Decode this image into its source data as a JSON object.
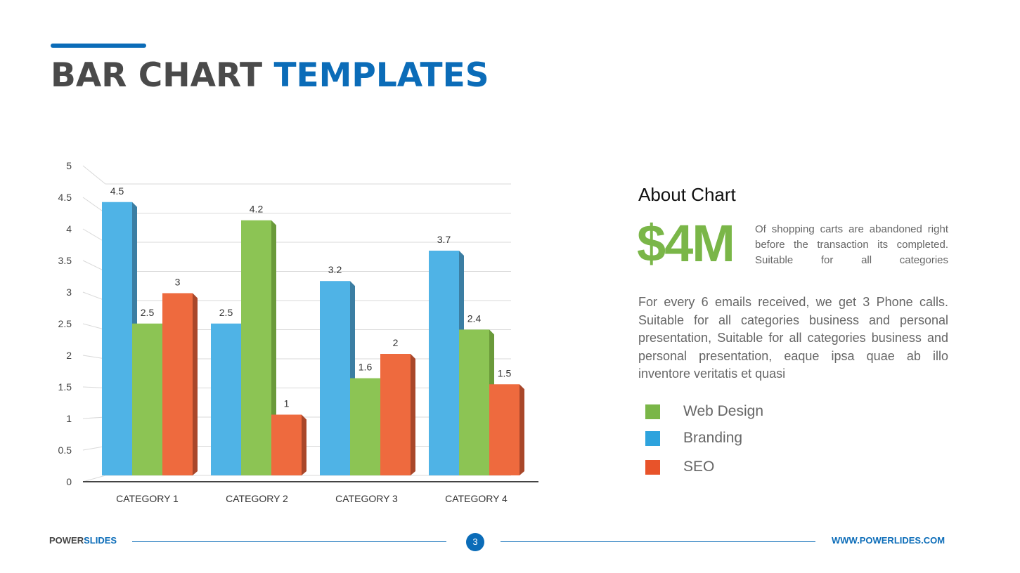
{
  "header": {
    "title_part1": "BAR CHART",
    "title_part2": "TEMPLATES"
  },
  "colors": {
    "accent": "#0b6cb8",
    "Web Design": "#8cc454",
    "Branding": "#4fb3e6",
    "SEO": "#ee6a3e"
  },
  "chart_data": {
    "type": "bar",
    "categories": [
      "CATEGORY 1",
      "CATEGORY 2",
      "CATEGORY 3",
      "CATEGORY 4"
    ],
    "series": [
      {
        "name": "Branding",
        "values": [
          4.5,
          2.5,
          3.2,
          3.7
        ]
      },
      {
        "name": "Web Design",
        "values": [
          2.5,
          4.2,
          1.6,
          2.4
        ]
      },
      {
        "name": "SEO",
        "values": [
          3,
          1,
          2,
          1.5
        ]
      }
    ],
    "ylim": [
      0,
      5
    ],
    "yticks": [
      "0",
      "0.5",
      "1",
      "1.5",
      "2",
      "2.5",
      "3",
      "3.5",
      "4",
      "4.5",
      "5"
    ],
    "grid": true,
    "style": "3d clustered column",
    "legend_position": "right"
  },
  "about": {
    "title": "About Chart",
    "big_value": "$4M",
    "big_desc": "Of shopping carts are abandoned right before the transaction its completed. Suitable for all categories",
    "paragraph": "For every 6 emails received, we get 3 Phone calls. Suitable for all categories business and personal presentation, Suitable for all categories business and personal presentation, eaque ipsa quae ab illo inventore veritatis et quasi"
  },
  "legend": [
    {
      "label": "Web Design",
      "color": "#7ab648"
    },
    {
      "label": "Branding",
      "color": "#2ea3dd"
    },
    {
      "label": "SEO",
      "color": "#e8532a"
    }
  ],
  "footer": {
    "brand_part1": "POWER",
    "brand_part2": "SLIDES",
    "page": "3",
    "url": "WWW.POWERLIDES.COM"
  }
}
